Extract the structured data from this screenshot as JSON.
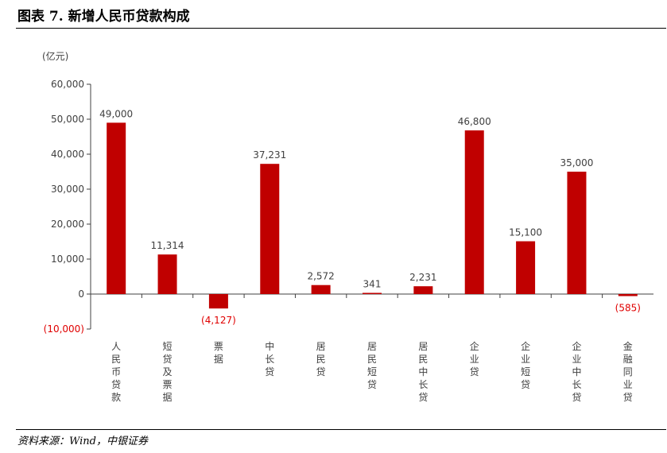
{
  "figure": {
    "title": "图表 7. 新增人民币贷款构成",
    "source": "资料来源：Wind，中银证券"
  },
  "colors": {
    "bar": "#C00000",
    "negative_label": "#E00000",
    "axis": "#404040",
    "text": "#404040"
  },
  "chart_data": {
    "type": "bar",
    "unit_label": "(亿元)",
    "categories": [
      "人民币贷款",
      "短贷及票据",
      "票据",
      "中长贷",
      "居民贷",
      "居民短贷",
      "居民中长贷",
      "企业贷",
      "企业短贷",
      "企业中长贷",
      "金融同业贷"
    ],
    "values": [
      49000,
      11314,
      -4127,
      37231,
      2572,
      341,
      2231,
      46800,
      15100,
      35000,
      -585
    ],
    "data_labels": [
      "49,000",
      "11,314",
      "(4,127)",
      "37,231",
      "2,572",
      "341",
      "2,231",
      "46,800",
      "15,100",
      "35,000",
      "(585)"
    ],
    "ylim": [
      -10000,
      60000
    ],
    "yticks": [
      -10000,
      0,
      10000,
      20000,
      30000,
      40000,
      50000,
      60000
    ],
    "ytick_labels": [
      "(10,000)",
      "0",
      "10,000",
      "20,000",
      "30,000",
      "40,000",
      "50,000",
      "60,000"
    ],
    "legend": "none",
    "grid": false
  }
}
